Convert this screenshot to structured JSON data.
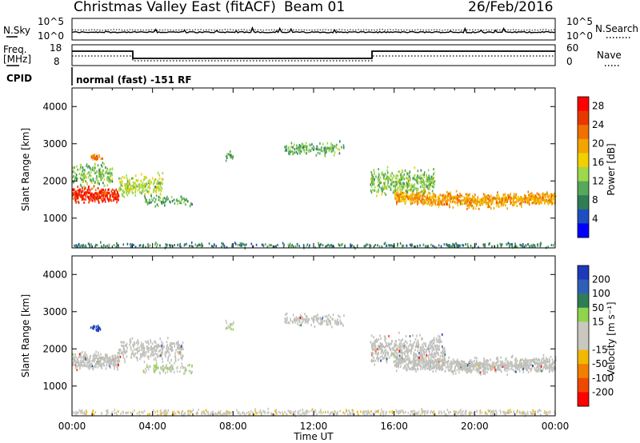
{
  "header": {
    "title": "Christmas Valley East (fitACF)",
    "beam": "Beam 01",
    "date": "26/Feb/2016"
  },
  "top_panels": {
    "nsky_label": "N.Sky",
    "nsearch_label": "N.Search",
    "noise_left_ticks": [
      "10^5",
      "10^0"
    ],
    "noise_right_ticks": [
      "10^5",
      "10^0"
    ],
    "freq_label_line1": "Freq.",
    "freq_label_line2": "[MHz]",
    "freq_ticks": [
      "18",
      "8"
    ],
    "nave_label": "Nave",
    "nave_ticks": [
      "60",
      "0"
    ],
    "cpid_label": "CPID",
    "cpid_text": "normal (fast) -151 RF"
  },
  "colors": {
    "power_scale": [
      "#0000ff",
      "#1f4fbf",
      "#2e7d57",
      "#56a85a",
      "#9fd84a",
      "#f0d000",
      "#f2a400",
      "#f07000",
      "#e83800",
      "#ff0000"
    ],
    "velocity_scale": [
      "#1f3ab8",
      "#2f5fb8",
      "#2e7d57",
      "#8fd44a",
      "#c8c8c0",
      "#c8c8c0",
      "#f2b800",
      "#f08000",
      "#f04800",
      "#ff0000"
    ],
    "ground_scatter": "#c0c0bc"
  },
  "chart_data": [
    {
      "type": "heatmap",
      "name": "power",
      "ylabel": "Slant Range [km]",
      "yticks": [
        "1000",
        "2000",
        "3000",
        "4000"
      ],
      "ylim": [
        200,
        4500
      ],
      "xlim": [
        0,
        24
      ],
      "colorbar_label": "Power [dB]",
      "colorbar_ticks": [
        "4",
        "8",
        "12",
        "16",
        "20",
        "24",
        "28"
      ],
      "colorbar_range": [
        0,
        30
      ],
      "regions": [
        {
          "t0": 0.0,
          "t1": 2.3,
          "r_center": 1650,
          "r_spread": 280,
          "level": 26,
          "density": 0.95
        },
        {
          "t0": 2.3,
          "t1": 4.5,
          "r_center": 1900,
          "r_spread": 420,
          "level": 14,
          "density": 0.5
        },
        {
          "t0": 0.0,
          "t1": 2.0,
          "r_center": 2200,
          "r_spread": 450,
          "level": 12,
          "density": 0.45
        },
        {
          "t0": 0.9,
          "t1": 1.5,
          "r_center": 2680,
          "r_spread": 120,
          "level": 22,
          "density": 0.9
        },
        {
          "t0": 3.5,
          "t1": 6.0,
          "r_center": 1500,
          "r_spread": 200,
          "level": 10,
          "density": 0.35
        },
        {
          "t0": 10.5,
          "t1": 13.5,
          "r_center": 2900,
          "r_spread": 230,
          "level": 11,
          "density": 0.45
        },
        {
          "t0": 7.6,
          "t1": 8.0,
          "r_center": 2700,
          "r_spread": 150,
          "level": 10,
          "density": 0.6
        },
        {
          "t0": 14.8,
          "t1": 18.0,
          "r_center": 2000,
          "r_spread": 500,
          "level": 12,
          "density": 0.55
        },
        {
          "t0": 16.0,
          "t1": 24.0,
          "r_center": 1600,
          "r_spread": 260,
          "level": 20,
          "density": 0.9
        },
        {
          "t0": 0.0,
          "t1": 24.0,
          "r_center": 300,
          "r_spread": 90,
          "level": 8,
          "density": 0.35
        }
      ]
    },
    {
      "type": "heatmap",
      "name": "velocity",
      "ylabel": "Slant Range [km]",
      "yticks": [
        "1000",
        "2000",
        "3000",
        "4000"
      ],
      "ylim": [
        200,
        4500
      ],
      "xlim": [
        0,
        24
      ],
      "xticks": [
        "00:00",
        "04:00",
        "08:00",
        "12:00",
        "16:00",
        "20:00",
        "00:00"
      ],
      "xlabel": "Time UT",
      "colorbar_label": "Velocity [m s⁻¹]",
      "colorbar_ticks": [
        "200",
        "100",
        "50",
        "15",
        "-15",
        "-50",
        "-100",
        "-200"
      ],
      "colorbar_range": [
        -250,
        250
      ],
      "regions": [
        {
          "t0": 0.0,
          "t1": 2.3,
          "r_center": 1700,
          "r_spread": 320,
          "kind": "gs",
          "density": 0.9
        },
        {
          "t0": 2.3,
          "t1": 5.5,
          "r_center": 2000,
          "r_spread": 420,
          "kind": "gs",
          "density": 0.5
        },
        {
          "t0": 3.5,
          "t1": 6.0,
          "r_center": 1500,
          "r_spread": 220,
          "kind": "v",
          "vel": 40,
          "density": 0.4
        },
        {
          "t0": 0.9,
          "t1": 1.4,
          "r_center": 2600,
          "r_spread": 120,
          "kind": "v",
          "vel": 220,
          "density": 0.9
        },
        {
          "t0": 10.5,
          "t1": 13.5,
          "r_center": 2800,
          "r_spread": 230,
          "kind": "gs",
          "density": 0.45
        },
        {
          "t0": 7.6,
          "t1": 8.0,
          "r_center": 2650,
          "r_spread": 150,
          "kind": "v",
          "vel": 40,
          "density": 0.6
        },
        {
          "t0": 14.8,
          "t1": 18.5,
          "r_center": 2000,
          "r_spread": 520,
          "kind": "gs",
          "density": 0.55
        },
        {
          "t0": 16.0,
          "t1": 24.0,
          "r_center": 1650,
          "r_spread": 280,
          "kind": "gs",
          "density": 0.9
        },
        {
          "t0": 0.0,
          "t1": 24.0,
          "r_center": 320,
          "r_spread": 110,
          "kind": "v",
          "vel": -30,
          "density": 0.45
        }
      ]
    }
  ]
}
